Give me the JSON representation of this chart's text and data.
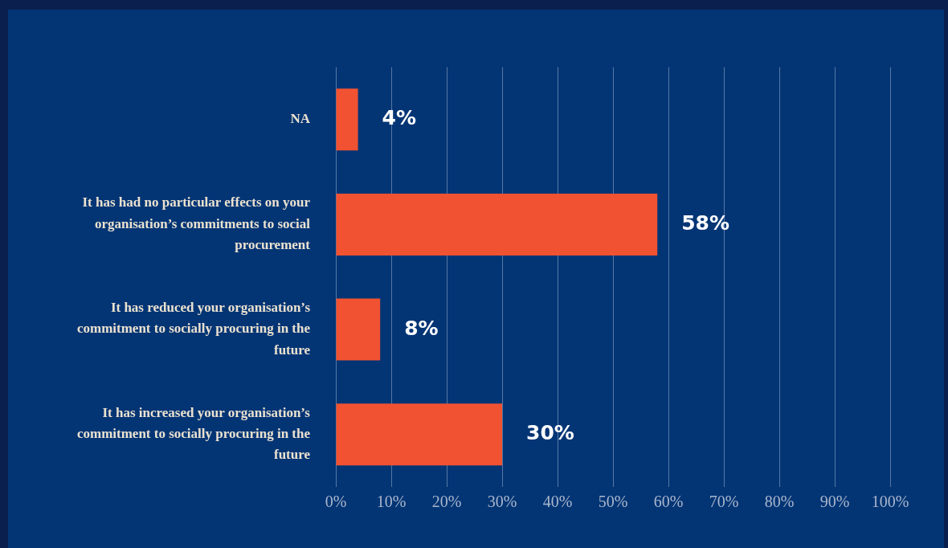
{
  "chart_data": {
    "type": "bar",
    "orientation": "horizontal",
    "categories": [
      "NA",
      "It has had no particular effects on your organisation’s commitments to social procurement",
      "It has reduced your organisation’s commitment to socially procuring in the future",
      "It has increased your organisation’s commitment to socially procuring in the future"
    ],
    "values": [
      4,
      58,
      8,
      30
    ],
    "value_labels": [
      "4%",
      "58%",
      "8%",
      "30%"
    ],
    "color": "#f05232",
    "xlim": [
      0,
      100
    ],
    "xticks": [
      {
        "value": 0,
        "label": "0%"
      },
      {
        "value": 10,
        "label": "10%"
      },
      {
        "value": 20,
        "label": "20%"
      },
      {
        "value": 30,
        "label": "30%"
      },
      {
        "value": 40,
        "label": "40%"
      },
      {
        "value": 50,
        "label": "50%"
      },
      {
        "value": 60,
        "label": "60%"
      },
      {
        "value": 70,
        "label": "70%"
      },
      {
        "value": 80,
        "label": "80%"
      },
      {
        "value": 90,
        "label": "90%"
      },
      {
        "value": 100,
        "label": "100%"
      }
    ],
    "grid": "x",
    "legend": false
  }
}
